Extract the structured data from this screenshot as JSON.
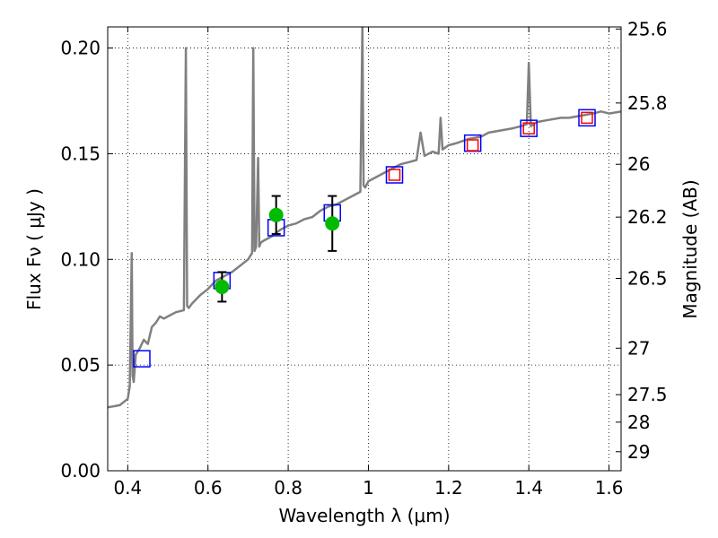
{
  "chart_data": {
    "type": "line",
    "xlabel": "Wavelength  λ (μm)",
    "ylabel": "Flux  Fν  ( μJy )",
    "ylabel_right": "Magnitude (AB)",
    "xlim": [
      0.35,
      1.63
    ],
    "ylim": [
      0.0,
      0.21
    ],
    "grid": true,
    "x_ticks": [
      0.4,
      0.6,
      0.8,
      1.0,
      1.2,
      1.4,
      1.6
    ],
    "x_tick_labels": [
      "0.4",
      "0.6",
      "0.8",
      "1",
      "1.2",
      "1.4",
      "1.6"
    ],
    "y_ticks": [
      0.0,
      0.05,
      0.1,
      0.15,
      0.2
    ],
    "y_tick_labels": [
      "0.00",
      "0.05",
      "0.10",
      "0.15",
      "0.20"
    ],
    "right_ticks": [
      {
        "label": "25.6",
        "flux": 0.209
      },
      {
        "label": "25.8",
        "flux": 0.174
      },
      {
        "label": "26",
        "flux": 0.145
      },
      {
        "label": "26.2",
        "flux": 0.12
      },
      {
        "label": "26.5",
        "flux": 0.091
      },
      {
        "label": "27",
        "flux": 0.058
      },
      {
        "label": "27.5",
        "flux": 0.036
      },
      {
        "label": "28",
        "flux": 0.023
      },
      {
        "label": "29",
        "flux": 0.009
      }
    ],
    "series": [
      {
        "type": "line",
        "color": "#808080",
        "x": [
          0.35,
          0.38,
          0.4,
          0.405,
          0.41,
          0.412,
          0.415,
          0.42,
          0.43,
          0.44,
          0.45,
          0.46,
          0.47,
          0.48,
          0.49,
          0.5,
          0.52,
          0.54,
          0.545,
          0.548,
          0.552,
          0.56,
          0.58,
          0.6,
          0.62,
          0.64,
          0.66,
          0.68,
          0.7,
          0.71,
          0.713,
          0.716,
          0.72,
          0.725,
          0.728,
          0.732,
          0.74,
          0.76,
          0.78,
          0.8,
          0.82,
          0.84,
          0.86,
          0.88,
          0.9,
          0.92,
          0.94,
          0.96,
          0.98,
          0.985,
          0.988,
          0.992,
          1.0,
          1.02,
          1.04,
          1.06,
          1.08,
          1.1,
          1.12,
          1.13,
          1.14,
          1.16,
          1.175,
          1.18,
          1.185,
          1.2,
          1.22,
          1.25,
          1.28,
          1.3,
          1.33,
          1.36,
          1.38,
          1.395,
          1.4,
          1.405,
          1.42,
          1.45,
          1.48,
          1.5,
          1.53,
          1.56,
          1.58,
          1.6,
          1.63
        ],
        "y": [
          0.03,
          0.031,
          0.034,
          0.04,
          0.103,
          0.045,
          0.042,
          0.055,
          0.058,
          0.062,
          0.06,
          0.068,
          0.07,
          0.073,
          0.072,
          0.073,
          0.075,
          0.076,
          0.2,
          0.078,
          0.077,
          0.079,
          0.083,
          0.086,
          0.09,
          0.092,
          0.094,
          0.097,
          0.1,
          0.103,
          0.2,
          0.104,
          0.106,
          0.148,
          0.106,
          0.108,
          0.109,
          0.111,
          0.114,
          0.116,
          0.117,
          0.119,
          0.12,
          0.123,
          0.125,
          0.126,
          0.128,
          0.13,
          0.132,
          0.21,
          0.135,
          0.134,
          0.137,
          0.139,
          0.141,
          0.143,
          0.145,
          0.146,
          0.147,
          0.16,
          0.149,
          0.151,
          0.15,
          0.167,
          0.152,
          0.154,
          0.155,
          0.157,
          0.158,
          0.16,
          0.161,
          0.162,
          0.163,
          0.164,
          0.193,
          0.163,
          0.165,
          0.166,
          0.167,
          0.167,
          0.168,
          0.169,
          0.17,
          0.169,
          0.17
        ]
      },
      {
        "type": "open-square",
        "color": "#0000ff",
        "x": [
          0.435,
          0.635,
          0.77,
          0.91,
          1.065,
          1.26,
          1.4,
          1.545
        ],
        "y": [
          0.053,
          0.09,
          0.115,
          0.122,
          0.14,
          0.155,
          0.162,
          0.167
        ]
      },
      {
        "type": "open-square",
        "color": "#ff0000",
        "x": [
          1.065,
          1.26,
          1.4,
          1.545
        ],
        "y": [
          0.14,
          0.154,
          0.162,
          0.167
        ]
      },
      {
        "type": "point-with-error",
        "color": "#00bb00",
        "x": [
          0.635,
          0.77,
          0.91
        ],
        "y": [
          0.087,
          0.121,
          0.117
        ],
        "yerr": [
          0.007,
          0.009,
          0.013
        ]
      }
    ]
  }
}
